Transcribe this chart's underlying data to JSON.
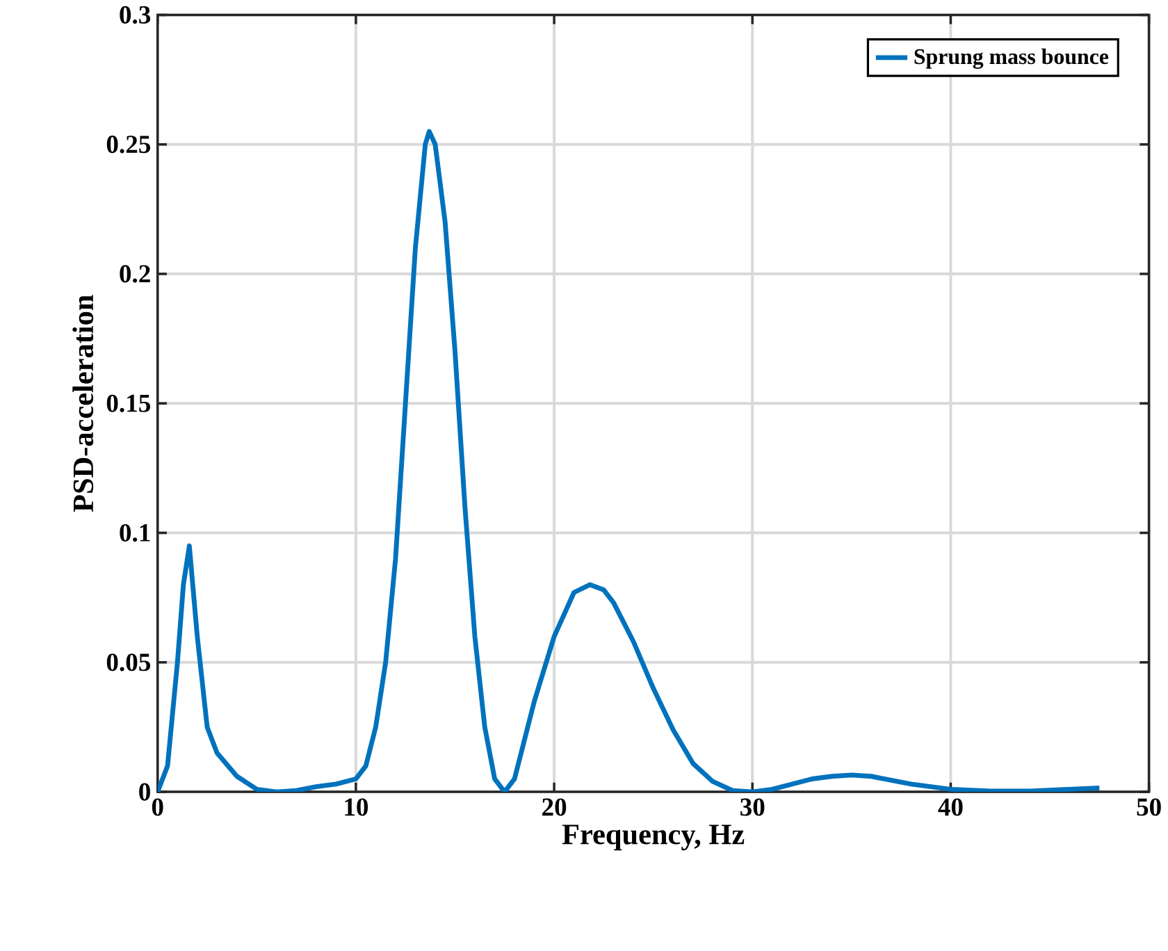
{
  "chart_data": {
    "type": "line",
    "xlabel": "Frequency, Hz",
    "ylabel": "PSD-acceleration",
    "xlim": [
      0,
      50
    ],
    "ylim": [
      0,
      0.3
    ],
    "xticks": [
      0,
      10,
      20,
      30,
      40,
      50
    ],
    "yticks": [
      0,
      0.05,
      0.1,
      0.15,
      0.2,
      0.25,
      0.3
    ],
    "grid": true,
    "legend": "top right",
    "marker": "none",
    "line_style": "solid",
    "series": [
      {
        "name": "Sprung mass bounce",
        "color": "#0072bd",
        "x": [
          0,
          0.5,
          1,
          1.3,
          1.6,
          2,
          2.5,
          3,
          4,
          5,
          6,
          7,
          8,
          9,
          10,
          10.5,
          11,
          11.5,
          12,
          12.5,
          13,
          13.5,
          13.7,
          14,
          14.5,
          15,
          15.5,
          16,
          16.5,
          17,
          17.5,
          18,
          18.5,
          19,
          20,
          21,
          21.8,
          22.5,
          23,
          24,
          25,
          26,
          27,
          28,
          29,
          30,
          31,
          32,
          33,
          34,
          35,
          36,
          37,
          38,
          39,
          40,
          42,
          44,
          46,
          47.5
        ],
        "values": [
          0,
          0.01,
          0.05,
          0.08,
          0.095,
          0.06,
          0.025,
          0.015,
          0.006,
          0.001,
          0,
          0.0005,
          0.002,
          0.003,
          0.005,
          0.01,
          0.025,
          0.05,
          0.09,
          0.15,
          0.21,
          0.25,
          0.255,
          0.25,
          0.22,
          0.17,
          0.11,
          0.06,
          0.025,
          0.005,
          0,
          0.005,
          0.02,
          0.035,
          0.06,
          0.077,
          0.08,
          0.078,
          0.073,
          0.058,
          0.04,
          0.024,
          0.011,
          0.004,
          0.0005,
          0,
          0.001,
          0.003,
          0.005,
          0.006,
          0.0065,
          0.006,
          0.0045,
          0.003,
          0.002,
          0.001,
          0.0003,
          0.0003,
          0.001,
          0.0015
        ]
      }
    ]
  }
}
